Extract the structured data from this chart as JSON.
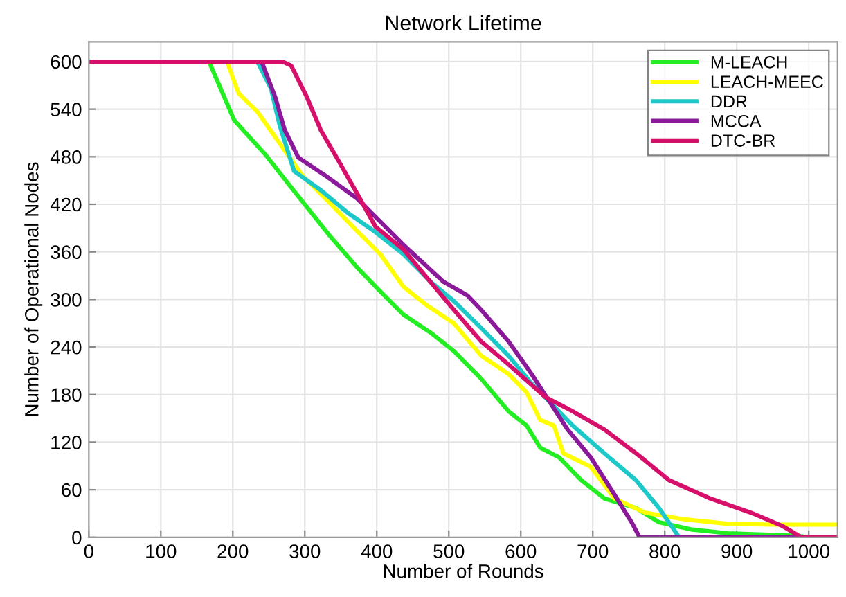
{
  "chart_data": {
    "type": "line",
    "title": "Network Lifetime",
    "xlabel": "Number of Rounds",
    "ylabel": "Number of Operational Nodes",
    "xlim": [
      0,
      1040
    ],
    "ylim": [
      0,
      625
    ],
    "xticks": [
      0,
      100,
      200,
      300,
      400,
      500,
      600,
      700,
      800,
      900,
      1000
    ],
    "yticks": [
      0,
      60,
      120,
      180,
      240,
      300,
      360,
      420,
      480,
      540,
      600
    ],
    "grid": true,
    "legend": "top right",
    "line_style": "solid",
    "marker": "none",
    "series": [
      {
        "name": "M-LEACH",
        "color": "#22ee22",
        "x": [
          0,
          167,
          202,
          246,
          284,
          335,
          373,
          405,
          437,
          475,
          507,
          545,
          583,
          608,
          627,
          653,
          684,
          716,
          760,
          792,
          836,
          888,
          951,
          983,
          1000,
          1040
        ],
        "values": [
          600,
          600,
          526,
          482,
          438,
          380,
          340,
          310,
          281,
          258,
          235,
          200,
          159,
          141,
          113,
          101,
          72,
          49,
          37,
          19,
          10,
          5,
          3,
          2,
          0,
          0
        ]
      },
      {
        "name": "LEACH-MEEC",
        "color": "#ffff00",
        "x": [
          0,
          192,
          208,
          234,
          265,
          297,
          329,
          373,
          405,
          437,
          469,
          507,
          545,
          583,
          608,
          627,
          646,
          659,
          697,
          730,
          773,
          825,
          888,
          951,
          1040
        ],
        "values": [
          600,
          600,
          560,
          537,
          497,
          456,
          427,
          386,
          357,
          316,
          293,
          270,
          229,
          206,
          183,
          148,
          141,
          106,
          89,
          49,
          31,
          23,
          17,
          16,
          16
        ]
      },
      {
        "name": "DDR",
        "color": "#1cc8c8",
        "x": [
          0,
          234,
          253,
          265,
          285,
          322,
          360,
          398,
          437,
          475,
          507,
          545,
          583,
          615,
          640,
          672,
          716,
          760,
          792,
          820,
          1040
        ],
        "values": [
          600,
          600,
          566,
          520,
          462,
          438,
          409,
          385,
          357,
          322,
          298,
          264,
          229,
          194,
          171,
          141,
          106,
          72,
          37,
          0,
          0
        ]
      },
      {
        "name": "MCCA",
        "color": "#8b1a9b",
        "x": [
          0,
          240,
          259,
          272,
          291,
          329,
          373,
          405,
          437,
          493,
          526,
          545,
          583,
          615,
          640,
          665,
          697,
          730,
          754,
          765,
          1040
        ],
        "values": [
          600,
          600,
          555,
          514,
          479,
          456,
          427,
          398,
          369,
          322,
          305,
          287,
          247,
          206,
          171,
          136,
          101,
          54,
          19,
          0,
          0
        ]
      },
      {
        "name": "DTC-BR",
        "color": "#d6106a",
        "x": [
          0,
          269,
          281,
          303,
          322,
          348,
          373,
          398,
          437,
          469,
          507,
          545,
          583,
          634,
          672,
          716,
          760,
          806,
          863,
          920,
          964,
          990,
          1040
        ],
        "values": [
          600,
          600,
          595,
          555,
          514,
          473,
          433,
          392,
          363,
          328,
          287,
          247,
          218,
          177,
          159,
          136,
          106,
          72,
          49,
          31,
          14,
          0,
          0
        ]
      }
    ]
  }
}
